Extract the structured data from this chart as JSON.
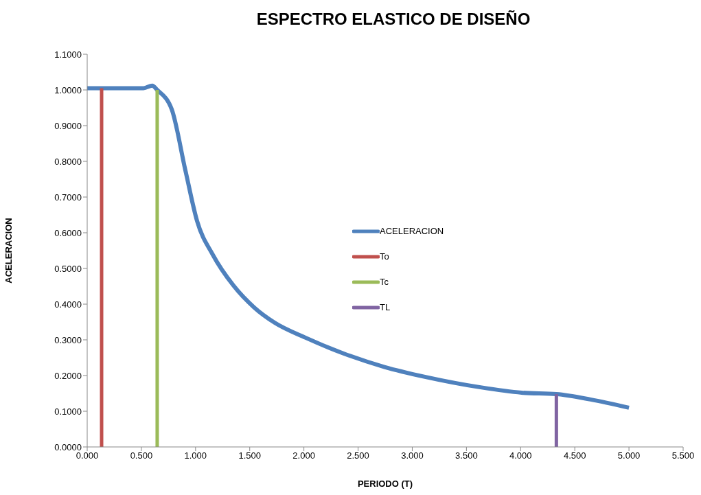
{
  "chart_data": {
    "type": "line",
    "title": "ESPECTRO ELASTICO DE DISEÑO",
    "xlabel": "PERIODO (T)",
    "ylabel": "ACELERACION",
    "xlim": [
      0,
      5.5
    ],
    "xticks": [
      {
        "value": 0,
        "label": "0.000"
      },
      {
        "value": 0.5,
        "label": "0.500"
      },
      {
        "value": 1,
        "label": "1.000"
      },
      {
        "value": 1.5,
        "label": "1.500"
      },
      {
        "value": 2,
        "label": "2.000"
      },
      {
        "value": 2.5,
        "label": "2.500"
      },
      {
        "value": 3,
        "label": "3.000"
      },
      {
        "value": 3.5,
        "label": "3.500"
      },
      {
        "value": 4,
        "label": "4.000"
      },
      {
        "value": 4.5,
        "label": "4.500"
      },
      {
        "value": 5,
        "label": "5.000"
      },
      {
        "value": 5.5,
        "label": "5.500"
      }
    ],
    "ylim": [
      0,
      1.1
    ],
    "yticks": [
      {
        "value": 0,
        "label": "0.0000"
      },
      {
        "value": 0.1,
        "label": "0.1000"
      },
      {
        "value": 0.2,
        "label": "0.2000"
      },
      {
        "value": 0.3,
        "label": "0.3000"
      },
      {
        "value": 0.4,
        "label": "0.4000"
      },
      {
        "value": 0.5,
        "label": "0.5000"
      },
      {
        "value": 0.6,
        "label": "0.6000"
      },
      {
        "value": 0.7,
        "label": "0.7000"
      },
      {
        "value": 0.8,
        "label": "0.8000"
      },
      {
        "value": 0.9,
        "label": "0.9000"
      },
      {
        "value": 1,
        "label": "1.0000"
      },
      {
        "value": 1.1,
        "label": "1.1000"
      }
    ],
    "grid": false,
    "legend": "center",
    "series": [
      {
        "name": "ACELERACION",
        "color": "#4f81bd",
        "x": [
          0,
          0.52,
          0.6,
          0.646,
          0.78,
          0.906,
          1.014,
          1.16,
          1.35,
          1.54,
          1.73,
          2.015,
          2.364,
          2.744,
          3.124,
          3.63,
          4.01,
          4.33,
          4.645,
          5.0
        ],
        "values": [
          1.005,
          1.005,
          1.012,
          1.0,
          0.946,
          0.775,
          0.633,
          0.538,
          0.452,
          0.391,
          0.348,
          0.306,
          0.262,
          0.224,
          0.196,
          0.167,
          0.152,
          0.148,
          0.133,
          0.11
        ]
      },
      {
        "name": "To",
        "color": "#c0504d",
        "x": [
          0.133,
          0.133
        ],
        "values": [
          0,
          1.005
        ]
      },
      {
        "name": "Tc",
        "color": "#9bbb59",
        "x": [
          0.646,
          0.646
        ],
        "values": [
          0,
          1.0
        ]
      },
      {
        "name": "TL",
        "color": "#8064a2",
        "x": [
          4.33,
          4.33
        ],
        "values": [
          0,
          0.148
        ]
      }
    ]
  }
}
